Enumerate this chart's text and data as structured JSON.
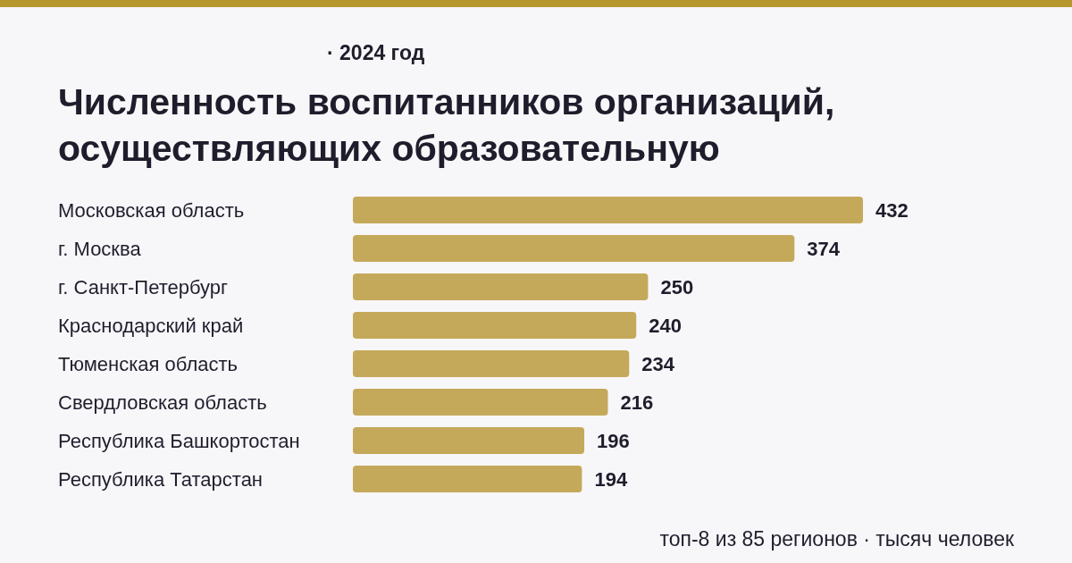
{
  "chart_data": {
    "type": "bar",
    "orientation": "horizontal",
    "subtitle": "· 2024 год",
    "title": "Численность воспитанников организаций, осуществляющих образовательную",
    "categories": [
      "Московская область",
      "г. Москва",
      "г. Санкт-Петербург",
      "Краснодарский край",
      "Тюменская область",
      "Свердловская область",
      "Республика Башкортостан",
      "Республика Татарстан"
    ],
    "values": [
      432,
      374,
      250,
      240,
      234,
      216,
      196,
      194
    ],
    "color": "#c5a95a",
    "data_labels": true,
    "annotations": [
      "топ-8 из 85 регионов · тысяч человек"
    ]
  }
}
